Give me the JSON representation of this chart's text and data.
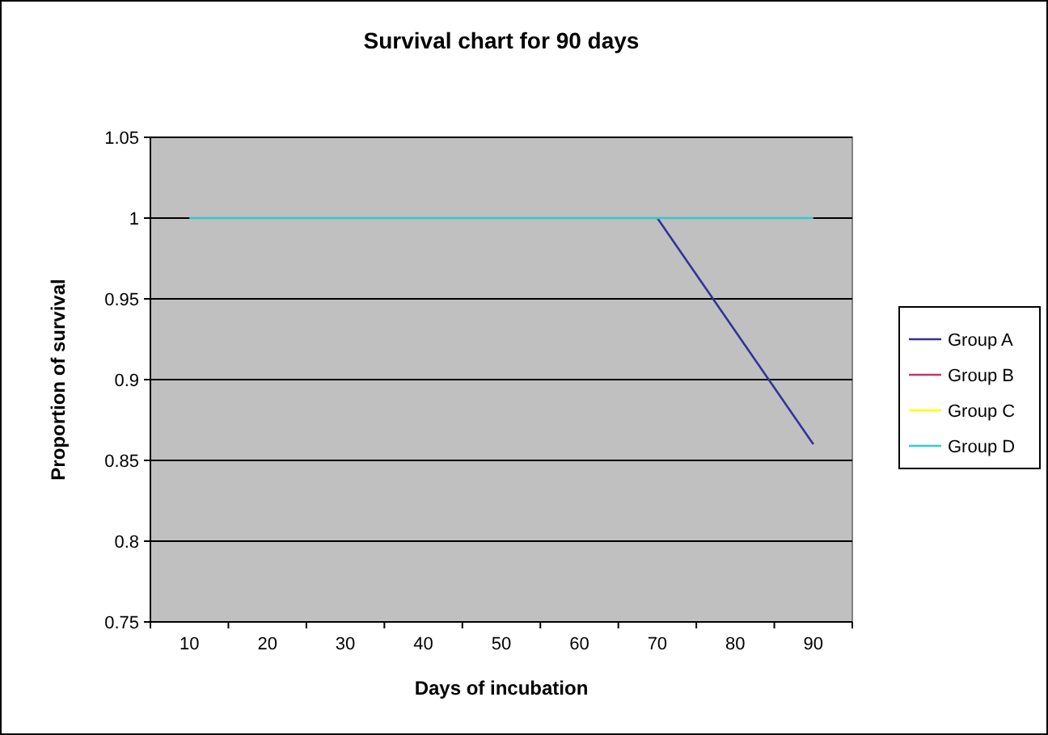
{
  "chart_data": {
    "type": "line",
    "title": "Survival chart for 90 days",
    "xlabel": "Days of incubation",
    "ylabel": "Proportion of survival",
    "categories": [
      "10",
      "20",
      "30",
      "40",
      "50",
      "60",
      "70",
      "80",
      "90"
    ],
    "ylim": [
      0.75,
      1.05
    ],
    "yticks": [
      0.75,
      0.8,
      0.85,
      0.9,
      0.95,
      1,
      1.05
    ],
    "grid": "y",
    "legend": "right",
    "marker": "none",
    "line_style": "solid",
    "series": [
      {
        "name": "Group A",
        "color": "#333399",
        "values": [
          null,
          null,
          null,
          null,
          null,
          null,
          1,
          0.93,
          0.86
        ]
      },
      {
        "name": "Group B",
        "color": "#cc3366",
        "values": [
          null,
          null,
          null,
          null,
          null,
          null,
          null,
          null,
          null
        ]
      },
      {
        "name": "Group C",
        "color": "#ffff00",
        "values": [
          null,
          null,
          null,
          null,
          null,
          null,
          null,
          null,
          null
        ]
      },
      {
        "name": "Group D",
        "color": "#33cccc",
        "values": [
          1,
          1,
          1,
          1,
          1,
          1,
          1,
          1,
          1
        ]
      }
    ]
  }
}
